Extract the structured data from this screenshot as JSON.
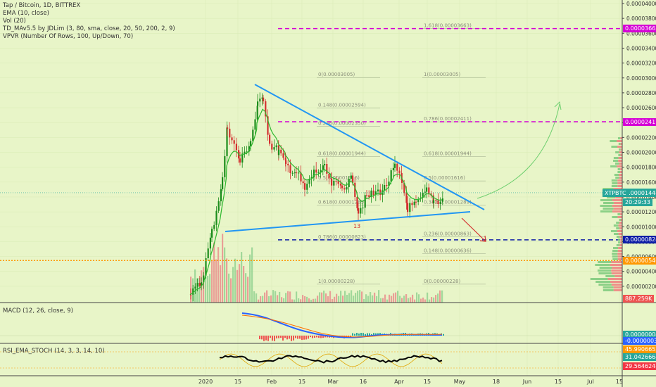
{
  "chart_data": {
    "type": "candlestick",
    "title": "Tap / Bitcoin, 1D, BITTREX",
    "indicators": [
      "EMA (10, close)",
      "Vol (20)",
      "TD_MAv5.5 by JDLim (3, 80, sma, close, 20, 50, 200, 2, 9)",
      "VPVR (Number Of Rows, 100, Up/Down, 70)"
    ],
    "price_axis_ticks": [
      "0.00004000",
      "0.00003800",
      "0.00003600",
      "0.00003400",
      "0.00003200",
      "0.00003000",
      "0.00002800",
      "0.00002600",
      "0.00002400",
      "0.00002200",
      "0.00002000",
      "0.00001800",
      "0.00001600",
      "0.00001400",
      "0.00001200",
      "0.00001000",
      "0.00000800",
      "0.00000600",
      "0.00000400",
      "0.00000200"
    ],
    "time_axis_ticks": [
      "2020",
      "15",
      "Feb",
      "15",
      "Mar",
      "16",
      "Apr",
      "15",
      "May",
      "18",
      "Jun",
      "15",
      "Jul",
      "15"
    ],
    "price_labels": [
      {
        "text": "0.00003663",
        "color": "#d500d5",
        "price": 3.663e-05
      },
      {
        "text": "0.00002411",
        "color": "#d500d5",
        "price": 2.411e-05
      },
      {
        "text": "0.00001457",
        "color": "#26a69a",
        "price": 1.457e-05
      },
      {
        "text": "0.00001448",
        "color": "#26a69a",
        "price": 1.448e-05
      },
      {
        "text": "20:29:33",
        "color": "#26a69a",
        "price": 1.33e-05
      },
      {
        "text": "0.00000824",
        "color": "#0d1ea6",
        "price": 8.24e-06
      },
      {
        "text": "0.00000546",
        "color": "#ff9800",
        "price": 5.46e-06
      },
      {
        "text": "887.259K",
        "color": "#ef5350",
        "price": 3e-07
      }
    ],
    "symbol_tag": "XTPBTC",
    "fib_labels": [
      {
        "text": "1.618(0.00003663)",
        "price": 3.663e-05,
        "side": "right"
      },
      {
        "text": "0(0.00003005)",
        "price": 3.005e-05,
        "side": "left"
      },
      {
        "text": "1(0.00003005)",
        "price": 3.005e-05,
        "side": "right"
      },
      {
        "text": "0.148(0.00002594)",
        "price": 2.594e-05,
        "side": "left"
      },
      {
        "text": "0.236(0.00002350)",
        "price": 2.35e-05,
        "side": "left"
      },
      {
        "text": "0.786(0.00002411)",
        "price": 2.411e-05,
        "side": "right"
      },
      {
        "text": "0.618(0.00001944)",
        "price": 1.944e-05,
        "side": "right"
      },
      {
        "text": "0.618(0.00001944)",
        "price": 1.944e-05,
        "side": "left"
      },
      {
        "text": "0.5(0.00001616)",
        "price": 1.616e-05,
        "side": "right"
      },
      {
        "text": "0.5(0.00001616)",
        "price": 1.616e-05,
        "side": "left"
      },
      {
        "text": "0.618(0.00001289)",
        "price": 1.289e-05,
        "side": "left"
      },
      {
        "text": "0.382(0.00001289)",
        "price": 1.289e-05,
        "side": "right"
      },
      {
        "text": "0.236(0.00000863)",
        "price": 8.63e-06,
        "side": "right"
      },
      {
        "text": "0.786(0.00000823)",
        "price": 8.23e-06,
        "side": "left"
      },
      {
        "text": "0.148(0.00000636)",
        "price": 6.36e-06,
        "side": "right"
      },
      {
        "text": "1(0.00000228)",
        "price": 2.28e-06,
        "side": "left"
      },
      {
        "text": "0(0.00000228)",
        "price": 2.28e-06,
        "side": "right"
      }
    ],
    "annotation": "13",
    "macd": {
      "title": "MACD (12, 26, close, 9)",
      "ticks": [
        "0.00000500",
        "0.00000000"
      ],
      "labels": [
        {
          "text": "0.00000004",
          "color": "#26a69a"
        },
        {
          "text": "-0.00000030",
          "color": "#2962ff"
        }
      ]
    },
    "rsi": {
      "title": "RSI_EMA_STOCH (14, 3, 3, 14, 10)",
      "labels": [
        {
          "text": "45.99066523",
          "color": "#ff9800"
        },
        {
          "text": "31.04266642",
          "color": "#26a69a"
        },
        {
          "text": "29.56462489",
          "color": "#f23645"
        }
      ]
    }
  }
}
